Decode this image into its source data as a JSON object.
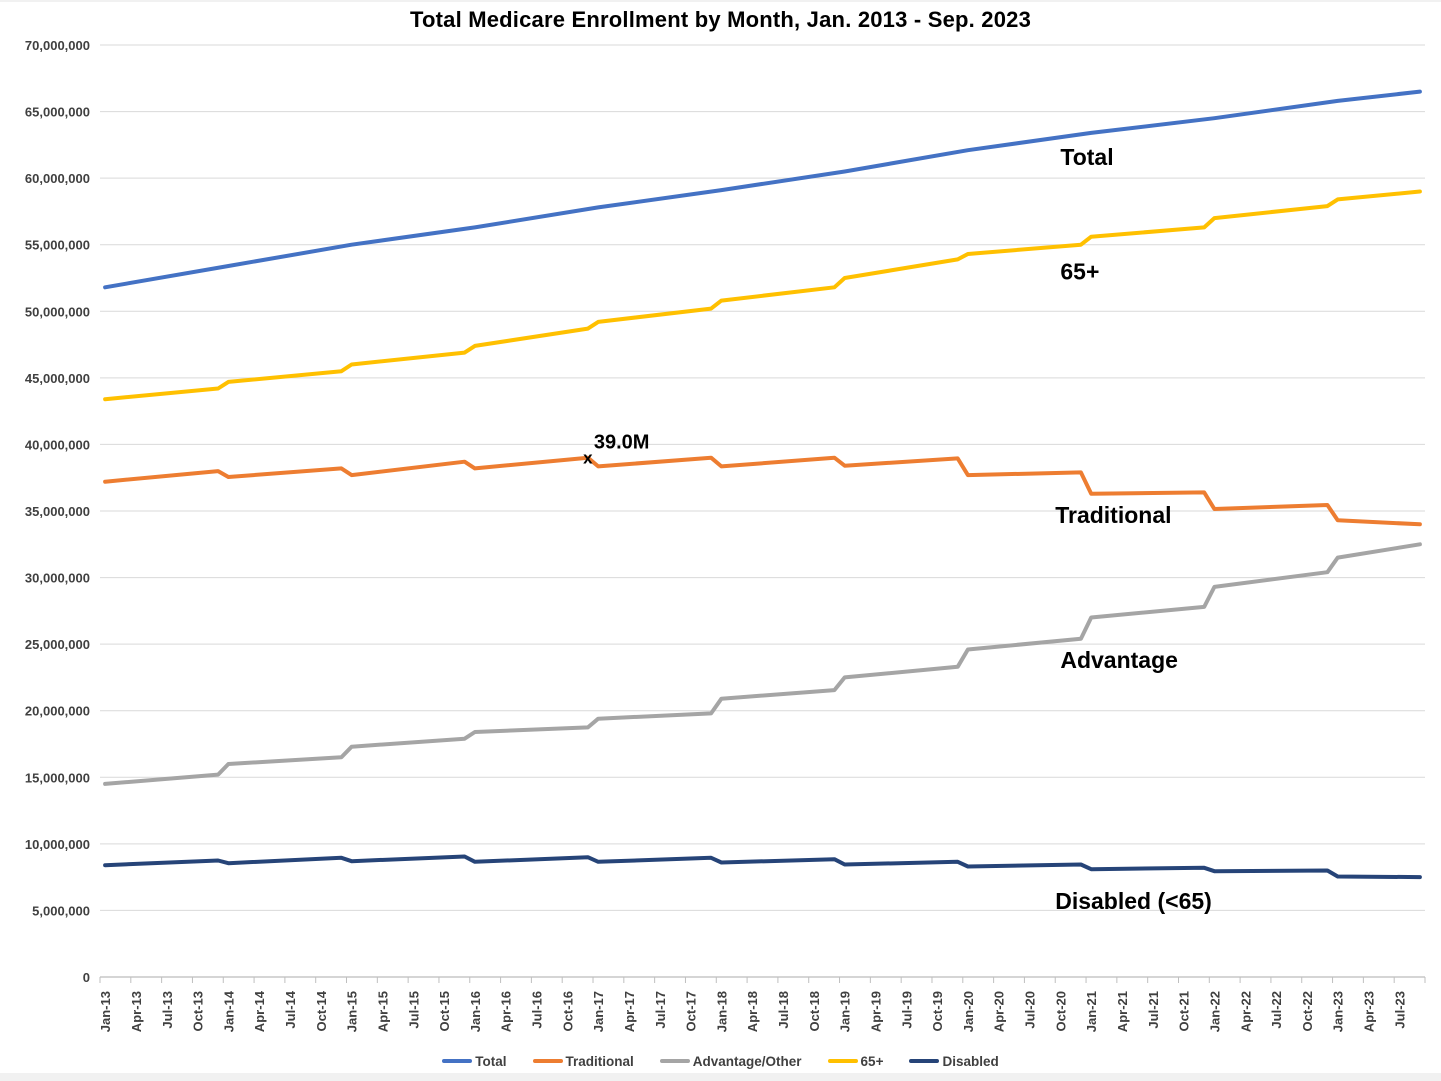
{
  "chart_data": {
    "type": "line",
    "title": "Total Medicare Enrollment by Month, Jan. 2013 - Sep. 2023",
    "xlabel": "",
    "ylabel": "",
    "units": "enrollees (values stored in millions)",
    "x_range": {
      "start": "Jan-13",
      "end": "Sep-23",
      "months_count": 129
    },
    "ylim_millions": [
      0,
      70
    ],
    "grid": "horizontal",
    "y_ticks": [
      {
        "v": 0,
        "label": "0"
      },
      {
        "v": 5,
        "label": "5,000,000"
      },
      {
        "v": 10,
        "label": "10,000,000"
      },
      {
        "v": 15,
        "label": "15,000,000"
      },
      {
        "v": 20,
        "label": "20,000,000"
      },
      {
        "v": 25,
        "label": "25,000,000"
      },
      {
        "v": 30,
        "label": "30,000,000"
      },
      {
        "v": 35,
        "label": "35,000,000"
      },
      {
        "v": 40,
        "label": "40,000,000"
      },
      {
        "v": 45,
        "label": "45,000,000"
      },
      {
        "v": 50,
        "label": "50,000,000"
      },
      {
        "v": 55,
        "label": "55,000,000"
      },
      {
        "v": 60,
        "label": "60,000,000"
      },
      {
        "v": 65,
        "label": "65,000,000"
      },
      {
        "v": 70,
        "label": "70,000,000"
      }
    ],
    "x_tick_labels": [
      "Jan-13",
      "Apr-13",
      "Jul-13",
      "Oct-13",
      "Jan-14",
      "Apr-14",
      "Jul-14",
      "Oct-14",
      "Jan-15",
      "Apr-15",
      "Jul-15",
      "Oct-15",
      "Jan-16",
      "Apr-16",
      "Jul-16",
      "Oct-16",
      "Jan-17",
      "Apr-17",
      "Jul-17",
      "Oct-17",
      "Jan-18",
      "Apr-18",
      "Jul-18",
      "Oct-18",
      "Jan-19",
      "Apr-19",
      "Jul-19",
      "Oct-19",
      "Jan-20",
      "Apr-20",
      "Jul-20",
      "Oct-20",
      "Jan-21",
      "Apr-21",
      "Jul-21",
      "Oct-21",
      "Jan-22",
      "Apr-22",
      "Jul-22",
      "Oct-22",
      "Jan-23",
      "Apr-23",
      "Jul-23"
    ],
    "x_tick_interval_months": 3,
    "series": [
      {
        "name": "Total",
        "color": "#4472C4",
        "inline_label": {
          "text": "Total",
          "month": 93,
          "value": 61.0
        },
        "points": [
          [
            0,
            51.8
          ],
          [
            12,
            53.4
          ],
          [
            24,
            55.0
          ],
          [
            36,
            56.3
          ],
          [
            48,
            57.8
          ],
          [
            60,
            59.1
          ],
          [
            72,
            60.5
          ],
          [
            84,
            62.1
          ],
          [
            96,
            63.4
          ],
          [
            108,
            64.5
          ],
          [
            120,
            65.8
          ],
          [
            128,
            66.5
          ]
        ]
      },
      {
        "name": "65+",
        "color": "#FFC000",
        "inline_label": {
          "text": "65+",
          "month": 93,
          "value": 52.4
        },
        "points": [
          [
            0,
            43.4
          ],
          [
            11,
            44.2
          ],
          [
            12,
            44.7
          ],
          [
            23,
            45.5
          ],
          [
            24,
            46.0
          ],
          [
            35,
            46.9
          ],
          [
            36,
            47.4
          ],
          [
            47,
            48.7
          ],
          [
            48,
            49.2
          ],
          [
            59,
            50.2
          ],
          [
            60,
            50.8
          ],
          [
            71,
            51.8
          ],
          [
            72,
            52.5
          ],
          [
            83,
            53.9
          ],
          [
            84,
            54.3
          ],
          [
            95,
            55.0
          ],
          [
            96,
            55.6
          ],
          [
            107,
            56.3
          ],
          [
            108,
            57.0
          ],
          [
            119,
            57.9
          ],
          [
            120,
            58.4
          ],
          [
            128,
            59.0
          ]
        ]
      },
      {
        "name": "Traditional",
        "color": "#ED7D31",
        "inline_label": {
          "text": "Traditional",
          "month": 92.5,
          "value": 34.1
        },
        "points": [
          [
            0,
            37.2
          ],
          [
            11,
            38.0
          ],
          [
            12,
            37.55
          ],
          [
            23,
            38.2
          ],
          [
            24,
            37.7
          ],
          [
            35,
            38.7
          ],
          [
            36,
            38.2
          ],
          [
            47,
            39.0
          ],
          [
            48,
            38.35
          ],
          [
            59,
            39.0
          ],
          [
            60,
            38.35
          ],
          [
            71,
            39.0
          ],
          [
            72,
            38.4
          ],
          [
            83,
            38.95
          ],
          [
            84,
            37.7
          ],
          [
            95,
            37.9
          ],
          [
            96,
            36.3
          ],
          [
            107,
            36.4
          ],
          [
            108,
            35.15
          ],
          [
            119,
            35.45
          ],
          [
            120,
            34.3
          ],
          [
            128,
            34.0
          ]
        ]
      },
      {
        "name": "Advantage/Other",
        "color": "#A5A5A5",
        "inline_label": {
          "text": "Advantage",
          "month": 93,
          "value": 23.2
        },
        "points": [
          [
            0,
            14.5
          ],
          [
            11,
            15.2
          ],
          [
            12,
            16.0
          ],
          [
            23,
            16.5
          ],
          [
            24,
            17.3
          ],
          [
            35,
            17.9
          ],
          [
            36,
            18.4
          ],
          [
            47,
            18.75
          ],
          [
            48,
            19.4
          ],
          [
            59,
            19.8
          ],
          [
            60,
            20.9
          ],
          [
            71,
            21.55
          ],
          [
            72,
            22.5
          ],
          [
            83,
            23.3
          ],
          [
            84,
            24.6
          ],
          [
            95,
            25.4
          ],
          [
            96,
            27.0
          ],
          [
            107,
            27.8
          ],
          [
            108,
            29.3
          ],
          [
            119,
            30.4
          ],
          [
            120,
            31.5
          ],
          [
            128,
            32.5
          ]
        ]
      },
      {
        "name": "Disabled",
        "color": "#264478",
        "inline_label": {
          "text": "Disabled (<65)",
          "month": 92.5,
          "value": 5.1
        },
        "points": [
          [
            0,
            8.4
          ],
          [
            11,
            8.75
          ],
          [
            12,
            8.55
          ],
          [
            23,
            8.95
          ],
          [
            24,
            8.7
          ],
          [
            35,
            9.05
          ],
          [
            36,
            8.65
          ],
          [
            47,
            9.0
          ],
          [
            48,
            8.65
          ],
          [
            59,
            8.95
          ],
          [
            60,
            8.6
          ],
          [
            71,
            8.85
          ],
          [
            72,
            8.45
          ],
          [
            83,
            8.65
          ],
          [
            84,
            8.3
          ],
          [
            95,
            8.45
          ],
          [
            96,
            8.1
          ],
          [
            107,
            8.2
          ],
          [
            108,
            7.95
          ],
          [
            119,
            8.0
          ],
          [
            120,
            7.55
          ],
          [
            128,
            7.5
          ]
        ]
      }
    ],
    "annotation": {
      "text": "39.0M",
      "marker": "x",
      "series": "Traditional",
      "month": 47,
      "value": 39.0
    }
  },
  "legend": {
    "items": [
      {
        "label": "Total",
        "color": "#4472C4"
      },
      {
        "label": "Traditional",
        "color": "#ED7D31"
      },
      {
        "label": "Advantage/Other",
        "color": "#A5A5A5"
      },
      {
        "label": "65+",
        "color": "#FFC000"
      },
      {
        "label": "Disabled",
        "color": "#264478"
      }
    ]
  }
}
